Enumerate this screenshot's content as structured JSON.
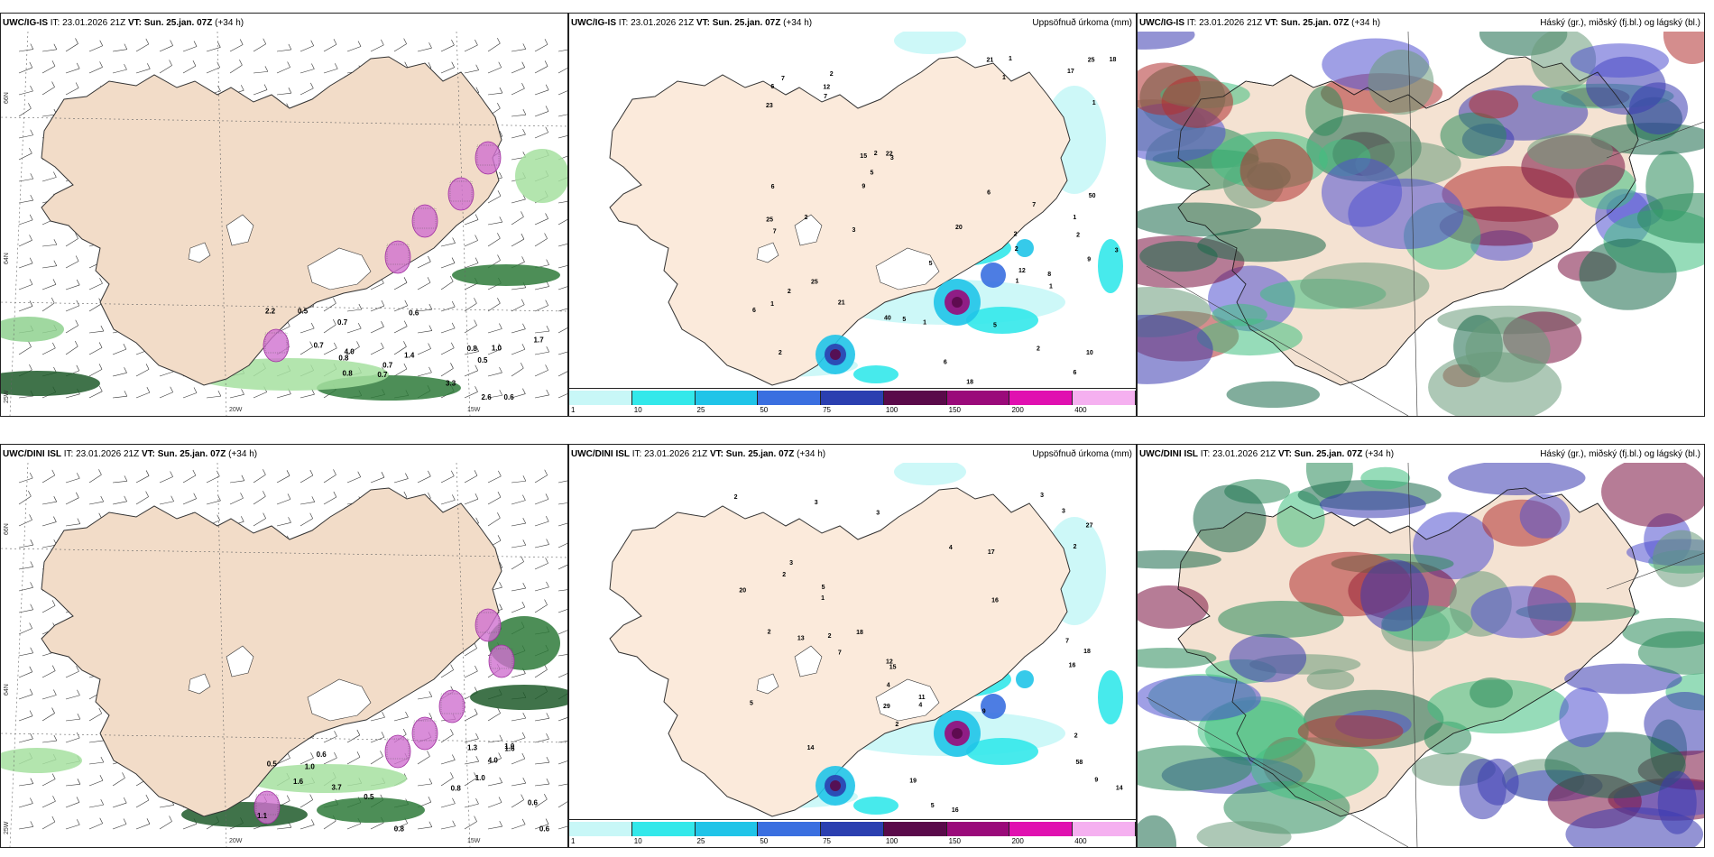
{
  "panels": [
    {
      "id": "p1",
      "model": "UWC/IG-IS",
      "it_label": "IT:",
      "it": "23.01.2026 21Z",
      "vt_label": "VT:",
      "vt": "Sun. 25.jan. 07Z",
      "lead": "(+34 h)",
      "right_title": ""
    },
    {
      "id": "p2",
      "model": "UWC/IG-IS",
      "it_label": "IT:",
      "it": "23.01.2026 21Z",
      "vt_label": "VT:",
      "vt": "Sun. 25.jan. 07Z",
      "lead": "(+34 h)",
      "right_title": "Uppsöfnuð úrkoma (mm)"
    },
    {
      "id": "p3",
      "model": "UWC/IG-IS",
      "it_label": "IT:",
      "it": "23.01.2026 21Z",
      "vt_label": "VT:",
      "vt": "Sun. 25.jan. 07Z",
      "lead": "(+34 h)",
      "right_title": "Háský (gr.), miðský (fj.bl.) og lágský (bl.)"
    },
    {
      "id": "p4",
      "model": "UWC/DINI ISL",
      "it_label": "IT:",
      "it": "23.01.2026 21Z",
      "vt_label": "VT:",
      "vt": "Sun. 25.jan. 07Z",
      "lead": "(+34 h)",
      "right_title": ""
    },
    {
      "id": "p5",
      "model": "UWC/DINI ISL",
      "it_label": "IT:",
      "it": "23.01.2026 21Z",
      "vt_label": "VT:",
      "vt": "Sun. 25.jan. 07Z",
      "lead": "(+34 h)",
      "right_title": "Uppsöfnuð úrkoma (mm)"
    },
    {
      "id": "p6",
      "model": "UWC/DINI ISL",
      "it_label": "IT:",
      "it": "23.01.2026 21Z",
      "vt_label": "VT:",
      "vt": "Sun. 25.jan. 07Z",
      "lead": "(+34 h)",
      "right_title": "Háský (gr.), miðský (fj.bl.) og lágský (bl.)"
    }
  ],
  "axes": {
    "lat_top": "66N",
    "lat_mid": "64N",
    "lat_bot": "25W",
    "lon_left": "20W",
    "lon_right": "15W"
  },
  "colorbar": {
    "labels": [
      "1",
      "10",
      "25",
      "50",
      "75",
      "100",
      "150",
      "200",
      "400"
    ],
    "colors": [
      "#c8f7f7",
      "#33e8ea",
      "#20c4e8",
      "#3a6fe0",
      "#2b3fb0",
      "#5a0a4a",
      "#9a0a7a",
      "#e010b0",
      "#f5b0f0"
    ]
  },
  "precip_labels_top": [
    "2",
    "2",
    "2",
    "2",
    "3",
    "2",
    "1",
    "1",
    "15",
    "18",
    "23",
    "25",
    "6",
    "10",
    "40",
    "50",
    "5",
    "20",
    "22",
    "25",
    "18",
    "17",
    "9",
    "9",
    "21",
    "12",
    "12",
    "7",
    "7",
    "7",
    "6",
    "5",
    "5",
    "3",
    "1",
    "1",
    "1",
    "2",
    "1",
    "2",
    "1",
    "1",
    "6",
    "5",
    "8",
    "21",
    "6",
    "7",
    "6",
    "6",
    "3",
    "2",
    "25",
    "2"
  ],
  "precip_labels_bot": [
    "2",
    "1",
    "2",
    "2",
    "3",
    "3",
    "4",
    "3",
    "2",
    "16",
    "12",
    "27",
    "29",
    "14",
    "13",
    "19",
    "18",
    "14",
    "15",
    "11",
    "18",
    "16",
    "5",
    "2",
    "7",
    "9",
    "3",
    "7",
    "4",
    "9",
    "17",
    "20",
    "5",
    "2",
    "2",
    "3",
    "5",
    "4",
    "58",
    "16"
  ],
  "wind_labels_top": [
    "0.7",
    "0.7",
    "0.5",
    "0.5",
    "0.6",
    "0.7",
    "0.7",
    "0.8",
    "0.8",
    "0.8",
    "1.0",
    "0.6",
    "2.2",
    "2.6",
    "4.0",
    "3.3",
    "1.4",
    "1.7"
  ],
  "wind_labels_bot": [
    "0.8",
    "1.0",
    "0.8",
    "1.0",
    "1.0",
    "0.5",
    "0.6",
    "0.6",
    "0.5",
    "1.6",
    "1.6",
    "4.0",
    "3.7",
    "1.3",
    "1.1",
    "0.6"
  ]
}
